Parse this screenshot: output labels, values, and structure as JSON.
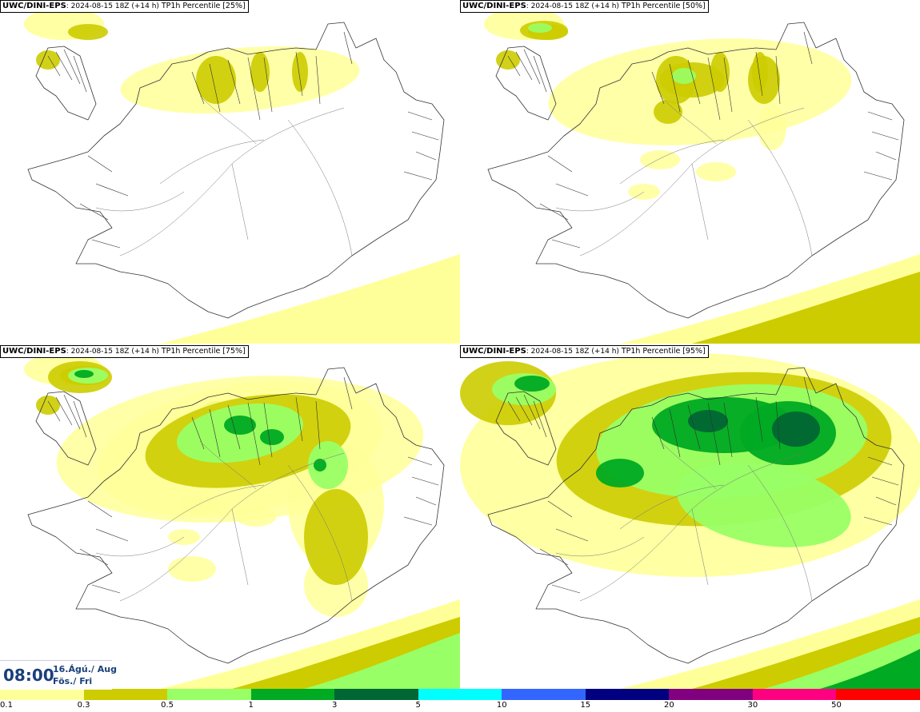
{
  "panels": [
    {
      "model": "UWC/DINI-EPS",
      "run": "2024-08-15 18Z",
      "lead": "(+14 h)",
      "field": "TP1h Percentile",
      "percentile": "[25%]",
      "intensity": 0
    },
    {
      "model": "UWC/DINI-EPS",
      "run": "2024-08-15 18Z",
      "lead": "(+14 h)",
      "field": "TP1h Percentile",
      "percentile": "[50%]",
      "intensity": 1
    },
    {
      "model": "UWC/DINI-EPS",
      "run": "2024-08-15 18Z",
      "lead": "(+14 h)",
      "field": "TP1h Percentile",
      "percentile": "[75%]",
      "intensity": 2
    },
    {
      "model": "UWC/DINI-EPS",
      "run": "2024-08-15 18Z",
      "lead": "(+14 h)",
      "field": "TP1h Percentile",
      "percentile": "[95%]",
      "intensity": 3
    }
  ],
  "valid_time": {
    "time": "08:00",
    "date_line1": "16.Ágú./ Aug",
    "date_line2": "Fös./ Fri"
  },
  "colorbar": {
    "labels": [
      "0.1",
      "0.3",
      "0.5",
      "1",
      "3",
      "5",
      "10",
      "15",
      "20",
      "30",
      "50"
    ],
    "colors": [
      "#ffff99",
      "#cccc00",
      "#99ff66",
      "#00aa22",
      "#006633",
      "#00ffff",
      "#3366ff",
      "#000080",
      "#800080",
      "#ff0080",
      "#ff0000"
    ]
  },
  "colors": {
    "light_yellow": "#ffff99",
    "olive": "#cccc00",
    "light_green": "#99ff66",
    "green": "#00aa22",
    "dark_green": "#006633",
    "land_outline": "#333333"
  }
}
